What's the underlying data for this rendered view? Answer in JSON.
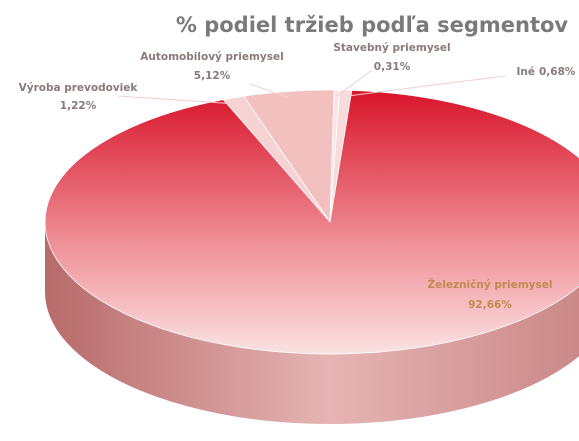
{
  "chart_data": {
    "type": "pie",
    "title": "% podiel tržieb podľa segmentov",
    "categories": [
      "Výroba prevodoviek",
      "Automobilový priemysel",
      "Stavebný priemysel",
      "Iné",
      "Železničný priemysel"
    ],
    "values": [
      1.22,
      5.12,
      0.31,
      0.68,
      92.66
    ],
    "value_labels": [
      "1,22%",
      "5,12%",
      "0,31%",
      "0,68%",
      "92,66%"
    ],
    "colors": [
      "#f6d2d2",
      "#f3c0c0",
      "#fae4e4",
      "#f8dcdc",
      "#d91a2e"
    ]
  }
}
